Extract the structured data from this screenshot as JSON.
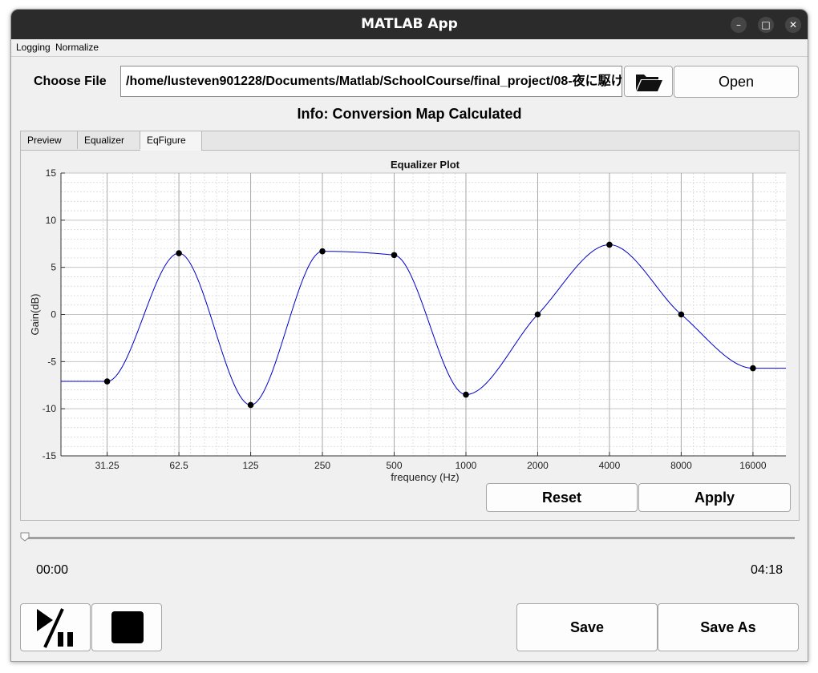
{
  "window": {
    "title": "MATLAB App"
  },
  "menu": [
    "Logging",
    "Normalize"
  ],
  "file": {
    "choose_label": "Choose File",
    "path": "/home/lusteven901228/Documents/Matlab/SchoolCourse/final_project/08-夜に駆け",
    "open_label": "Open"
  },
  "info": "Info: Conversion Map Calculated",
  "tabs": [
    {
      "label": "Preview",
      "active": false
    },
    {
      "label": "Equalizer",
      "active": false
    },
    {
      "label": "EqFigure",
      "active": true
    }
  ],
  "chart_data": {
    "type": "line",
    "title": "Equalizer Plot",
    "xlabel": "frequency (Hz)",
    "ylabel": "Gain(dB)",
    "x_scale": "log2",
    "xlim": [
      20,
      22000
    ],
    "ylim": [
      -15,
      15
    ],
    "yticks": [
      15,
      10,
      5,
      0,
      -5,
      -10,
      -15
    ],
    "xtick_labels": [
      "31.25",
      "62.5",
      "125",
      "250",
      "500",
      "1000",
      "2000",
      "4000",
      "8000",
      "16000"
    ],
    "grid": true,
    "minor_grid": true,
    "line_color": "#0000cc",
    "marker_color": "#000000",
    "points": [
      {
        "x": 31.25,
        "y": -7.1
      },
      {
        "x": 62.5,
        "y": 6.5
      },
      {
        "x": 125,
        "y": -9.6
      },
      {
        "x": 250,
        "y": 6.7
      },
      {
        "x": 500,
        "y": 6.3
      },
      {
        "x": 1000,
        "y": -8.5
      },
      {
        "x": 2000,
        "y": 0.0
      },
      {
        "x": 4000,
        "y": 7.4
      },
      {
        "x": 8000,
        "y": 0.0
      },
      {
        "x": 16000,
        "y": -5.7
      }
    ]
  },
  "buttons": {
    "reset": "Reset",
    "apply": "Apply",
    "save": "Save",
    "save_as": "Save As"
  },
  "playback": {
    "current": "00:00",
    "total": "04:18",
    "progress": 0
  }
}
